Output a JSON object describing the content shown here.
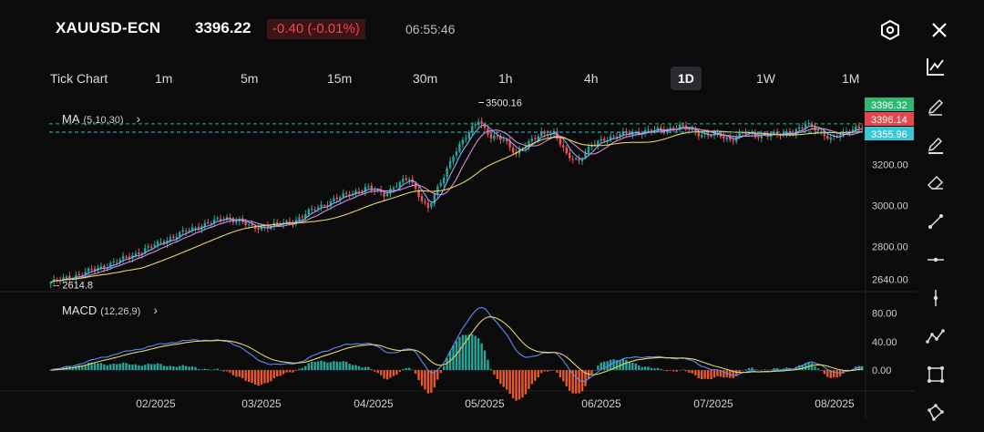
{
  "header": {
    "symbol": "XAUUSD-ECN",
    "price": "3396.22",
    "change": "-0.40 (-0.01%)",
    "time": "06:55:46"
  },
  "timeframes": [
    "Tick Chart",
    "1m",
    "5m",
    "15m",
    "30m",
    "1h",
    "4h",
    "1D",
    "1W",
    "1M"
  ],
  "active_timeframe": "1D",
  "indicators": {
    "ma": {
      "name": "MA",
      "params": "(5,10,30)"
    },
    "macd": {
      "name": "MACD",
      "params": "(12,26,9)"
    }
  },
  "price_badges": {
    "bid": "3396.32",
    "last": "3396.14",
    "ma_level": "3355.96"
  },
  "annotations": {
    "high": "3500.16",
    "low": "2614.8"
  },
  "tools": [
    "chart-type-icon",
    "pencil-icon",
    "pencil-alt-icon",
    "eraser-icon",
    "trend-line-icon",
    "horizontal-line-icon",
    "vertical-line-icon",
    "polyline-icon",
    "rectangle-icon",
    "pattern-icon"
  ],
  "colors": {
    "up": "#26a69a",
    "down": "#ef5350",
    "ma5": "#7fb0ff",
    "ma10": "#d98cd9",
    "ma30": "#e8d36a",
    "macd_line": "#5b8df5",
    "signal_line": "#e8d36a",
    "bid_badge": "#2eb872",
    "last_badge": "#e8454c",
    "ma_badge": "#39c6d6"
  },
  "chart_data": [
    {
      "type": "candlestick",
      "title": "",
      "x_ticks": [
        "02/2025",
        "03/2025",
        "04/2025",
        "05/2025",
        "06/2025",
        "07/2025",
        "08/2025"
      ],
      "y_ticks": [
        "3200.00",
        "3000.00",
        "2800.00",
        "2640.00"
      ],
      "ylim": [
        2590,
        3520
      ],
      "close_keypoints": [
        [
          0,
          2625
        ],
        [
          8,
          2660
        ],
        [
          16,
          2700
        ],
        [
          24,
          2745
        ],
        [
          32,
          2800
        ],
        [
          40,
          2855
        ],
        [
          48,
          2905
        ],
        [
          56,
          2940
        ],
        [
          60,
          2925
        ],
        [
          64,
          2890
        ],
        [
          72,
          2905
        ],
        [
          78,
          2930
        ],
        [
          84,
          2985
        ],
        [
          92,
          3040
        ],
        [
          100,
          3085
        ],
        [
          106,
          3055
        ],
        [
          110,
          3100
        ],
        [
          114,
          3130
        ],
        [
          118,
          3030
        ],
        [
          120,
          2985
        ],
        [
          124,
          3110
        ],
        [
          128,
          3250
        ],
        [
          132,
          3330
        ],
        [
          136,
          3420
        ],
        [
          140,
          3330
        ],
        [
          144,
          3320
        ],
        [
          148,
          3255
        ],
        [
          152,
          3300
        ],
        [
          156,
          3355
        ],
        [
          160,
          3350
        ],
        [
          164,
          3245
        ],
        [
          168,
          3220
        ],
        [
          172,
          3290
        ],
        [
          176,
          3325
        ],
        [
          182,
          3345
        ],
        [
          188,
          3360
        ],
        [
          194,
          3365
        ],
        [
          200,
          3385
        ],
        [
          206,
          3350
        ],
        [
          212,
          3340
        ],
        [
          216,
          3320
        ],
        [
          220,
          3355
        ],
        [
          224,
          3335
        ],
        [
          228,
          3350
        ],
        [
          232,
          3340
        ],
        [
          236,
          3360
        ],
        [
          240,
          3395
        ],
        [
          244,
          3360
        ],
        [
          248,
          3330
        ],
        [
          252,
          3345
        ],
        [
          256,
          3380
        ],
        [
          258,
          3385
        ]
      ],
      "high_label": "3500.16",
      "low_label": "2614.8",
      "ma_periods": [
        5,
        10,
        30
      ]
    },
    {
      "type": "macd",
      "params": [
        12,
        26,
        9
      ],
      "y_ticks": [
        "80.00",
        "40.00",
        "0.00"
      ],
      "ylim": [
        -28,
        105
      ]
    }
  ]
}
